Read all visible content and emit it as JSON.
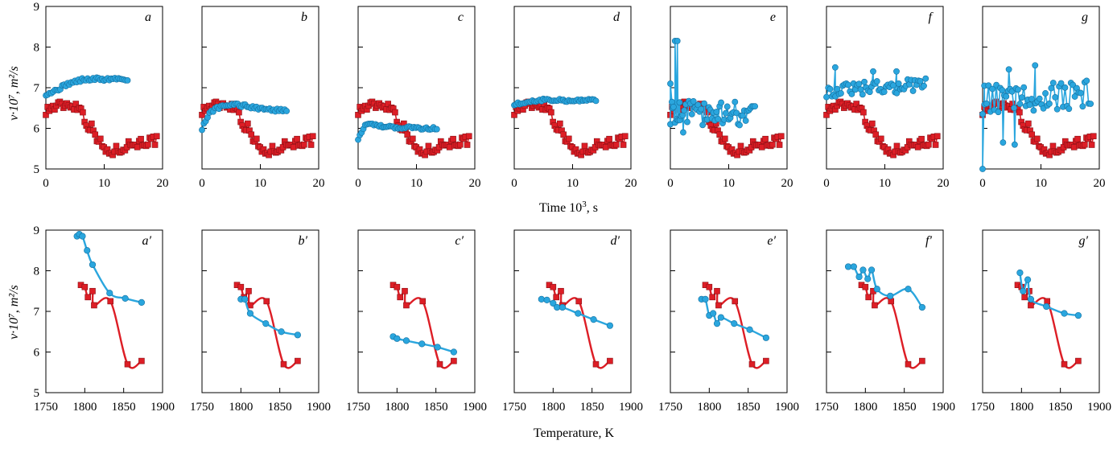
{
  "colors": {
    "blue": "#2aa6de",
    "blue_edge": "#1470a0",
    "red": "#dd1e26",
    "red_edge": "#8a0f14"
  },
  "top_row": {
    "xlabel_main": "Time 10",
    "xlabel_sup": "3",
    "xlabel_tail": ", s",
    "ylabel": "ν·10⁷, m²/s"
  },
  "bottom_row": {
    "xlabel": "Temperature, K",
    "ylabel": "ν·10⁷, m²/s"
  },
  "chart_data": [
    {
      "type": "scatter",
      "row": "top",
      "xlim": [
        0,
        20
      ],
      "ylim": [
        5,
        9
      ],
      "xticks": [
        0,
        10,
        20
      ],
      "yticks": [
        5,
        6,
        7,
        8,
        9
      ],
      "panels": [
        {
          "label": "a",
          "blue": {
            "kind": "smooth",
            "x0": 0,
            "x1": 14,
            "y": [
              6.85,
              6.9,
              7.0,
              7.1,
              7.15,
              7.2,
              7.2,
              7.22,
              7.2,
              7.22,
              7.22,
              7.2
            ],
            "noise": 0.04
          }
        },
        {
          "label": "b",
          "blue": {
            "kind": "smooth",
            "x0": 0,
            "x1": 14.5,
            "y": [
              6.0,
              6.4,
              6.5,
              6.55,
              6.6,
              6.55,
              6.55,
              6.5,
              6.5,
              6.45,
              6.45,
              6.45
            ],
            "noise": 0.04
          }
        },
        {
          "label": "c",
          "blue": {
            "kind": "smooth",
            "x0": 0,
            "x1": 13.5,
            "y": [
              5.75,
              6.1,
              6.1,
              6.05,
              6.05,
              6.02,
              6.02,
              6.02,
              6.0,
              6.0,
              6.0,
              6.0
            ],
            "noise": 0.03
          }
        },
        {
          "label": "d",
          "blue": {
            "kind": "smooth",
            "x0": 0,
            "x1": 14,
            "y": [
              6.6,
              6.62,
              6.65,
              6.68,
              6.7,
              6.7,
              6.7,
              6.68,
              6.68,
              6.68,
              6.7,
              6.7
            ],
            "noise": 0.03
          }
        },
        {
          "label": "e",
          "blue": {
            "kind": "noisy",
            "x0": 0,
            "x1": 14.5,
            "base": 6.4,
            "end": 6.35,
            "noise": 0.3,
            "extra": [
              [
                0,
                7.1
              ],
              [
                0.4,
                6.5
              ],
              [
                0.8,
                8.15
              ],
              [
                1.2,
                8.15
              ],
              [
                1.6,
                6.2
              ],
              [
                2.2,
                5.9
              ]
            ]
          }
        },
        {
          "label": "f",
          "blue": {
            "kind": "noisy",
            "x0": 0,
            "x1": 17,
            "base": 6.95,
            "end": 7.05,
            "noise": 0.18,
            "extra": [
              [
                1.5,
                7.5
              ],
              [
                8.0,
                7.4
              ],
              [
                12.0,
                7.4
              ]
            ]
          }
        },
        {
          "label": "g",
          "blue": {
            "kind": "noisy",
            "x0": 0,
            "x1": 18.5,
            "base": 6.7,
            "end": 6.85,
            "noise": 0.35,
            "extra": [
              [
                0,
                5.0
              ],
              [
                0.3,
                7.05
              ],
              [
                4.5,
                7.45
              ],
              [
                9.0,
                7.55
              ],
              [
                3.5,
                5.65
              ],
              [
                5.5,
                5.6
              ]
            ]
          }
        }
      ],
      "red_reference": {
        "kind": "steps",
        "x0": 0,
        "x1": 19,
        "knots": [
          [
            0,
            6.45
          ],
          [
            2,
            6.55
          ],
          [
            4,
            6.6
          ],
          [
            6,
            6.5
          ],
          [
            7,
            6.1
          ],
          [
            8,
            6.0
          ],
          [
            9.5,
            5.6
          ],
          [
            10.5,
            5.4
          ],
          [
            12,
            5.45
          ],
          [
            14,
            5.6
          ],
          [
            16,
            5.65
          ],
          [
            19,
            5.7
          ]
        ],
        "noise": 0.12
      }
    },
    {
      "type": "line",
      "row": "bottom",
      "xlim": [
        1750,
        1900
      ],
      "ylim": [
        5,
        9
      ],
      "xticks": [
        1750,
        1800,
        1850,
        1900
      ],
      "yticks": [
        5,
        6,
        7,
        8,
        9
      ],
      "panels": [
        {
          "label": "a′",
          "blue": [
            [
              1790,
              8.85
            ],
            [
              1793,
              8.9
            ],
            [
              1797,
              8.85
            ],
            [
              1803,
              8.5
            ],
            [
              1810,
              8.15
            ],
            [
              1832,
              7.45
            ],
            [
              1852,
              7.32
            ],
            [
              1873,
              7.22
            ]
          ]
        },
        {
          "label": "b′",
          "blue": [
            [
              1800,
              7.3
            ],
            [
              1805,
              7.3
            ],
            [
              1812,
              6.95
            ],
            [
              1832,
              6.7
            ],
            [
              1852,
              6.5
            ],
            [
              1873,
              6.42
            ]
          ]
        },
        {
          "label": "c′",
          "blue": [
            [
              1795,
              6.38
            ],
            [
              1800,
              6.33
            ],
            [
              1812,
              6.28
            ],
            [
              1832,
              6.2
            ],
            [
              1852,
              6.12
            ],
            [
              1873,
              6.0
            ]
          ]
        },
        {
          "label": "d′",
          "blue": [
            [
              1785,
              7.3
            ],
            [
              1792,
              7.28
            ],
            [
              1800,
              7.2
            ],
            [
              1805,
              7.1
            ],
            [
              1812,
              7.1
            ],
            [
              1832,
              6.95
            ],
            [
              1852,
              6.8
            ],
            [
              1873,
              6.65
            ]
          ]
        },
        {
          "label": "e′",
          "blue": [
            [
              1790,
              7.3
            ],
            [
              1795,
              7.3
            ],
            [
              1800,
              6.9
            ],
            [
              1805,
              6.95
            ],
            [
              1810,
              6.7
            ],
            [
              1815,
              6.85
            ],
            [
              1832,
              6.7
            ],
            [
              1852,
              6.55
            ],
            [
              1873,
              6.35
            ]
          ]
        },
        {
          "label": "f′",
          "blue": [
            [
              1778,
              8.1
            ],
            [
              1785,
              8.1
            ],
            [
              1792,
              7.85
            ],
            [
              1797,
              8.02
            ],
            [
              1803,
              7.8
            ],
            [
              1808,
              8.02
            ],
            [
              1815,
              7.55
            ],
            [
              1832,
              7.38
            ],
            [
              1855,
              7.55
            ],
            [
              1873,
              7.1
            ]
          ]
        },
        {
          "label": "g′",
          "blue": [
            [
              1798,
              7.95
            ],
            [
              1802,
              7.5
            ],
            [
              1808,
              7.78
            ],
            [
              1812,
              7.3
            ],
            [
              1832,
              7.12
            ],
            [
              1855,
              6.95
            ],
            [
              1873,
              6.9
            ]
          ]
        }
      ],
      "red_reference": [
        [
          1795,
          7.65
        ],
        [
          1800,
          7.6
        ],
        [
          1804,
          7.35
        ],
        [
          1810,
          7.5
        ],
        [
          1812,
          7.15
        ],
        [
          1833,
          7.25
        ],
        [
          1855,
          5.7
        ],
        [
          1873,
          5.78
        ]
      ]
    }
  ]
}
